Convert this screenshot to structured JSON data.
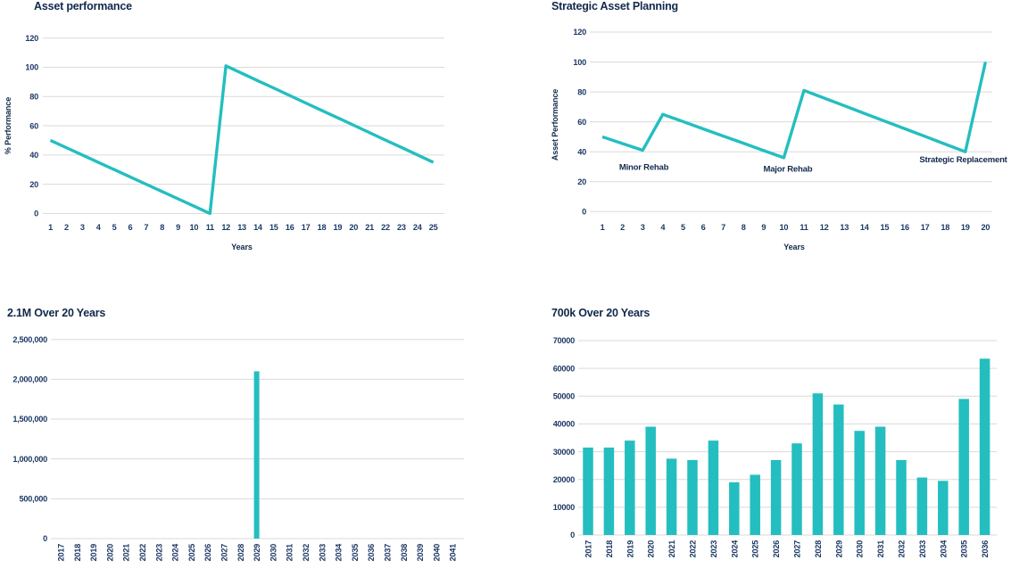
{
  "page": {
    "background": "#ffffff"
  },
  "colors": {
    "teal": "#24bec0",
    "title_navy": "#12294c",
    "tick_navy": "#1e3a66",
    "grid": "#dadada"
  },
  "chart_data": [
    {
      "id": "asset-performance",
      "type": "line",
      "title": "Asset performance",
      "xlabel": "Years",
      "ylabel": "% Performance",
      "x": [
        1,
        2,
        3,
        4,
        5,
        6,
        7,
        8,
        9,
        10,
        11,
        12,
        13,
        14,
        15,
        16,
        17,
        18,
        19,
        20,
        21,
        22,
        23,
        24,
        25
      ],
      "values": [
        50,
        45,
        40,
        35,
        30,
        25,
        20,
        15,
        10,
        5,
        0,
        101,
        95.9,
        90.8,
        85.8,
        80.7,
        75.6,
        70.5,
        65.5,
        60.4,
        55.3,
        50.2,
        45.2,
        40.1,
        35
      ],
      "ylim": [
        0,
        120
      ],
      "ytick_values": [
        0,
        20,
        40,
        60,
        80,
        100,
        120
      ],
      "ytick_labels": [
        "0",
        "20",
        "40",
        "60",
        "80",
        "100",
        "120"
      ],
      "grid": true,
      "legend": false
    },
    {
      "id": "strategic-asset-planning",
      "type": "line",
      "title": "Strategic Asset Planning",
      "xlabel": "Years",
      "ylabel": "Asset Performance",
      "x": [
        1,
        2,
        3,
        4,
        5,
        6,
        7,
        8,
        9,
        10,
        11,
        12,
        13,
        14,
        15,
        16,
        17,
        18,
        19,
        20
      ],
      "values": [
        50,
        45.5,
        41,
        65,
        60.2,
        55.3,
        50.5,
        45.7,
        40.8,
        36,
        81,
        75.9,
        70.8,
        65.6,
        60.5,
        55.4,
        50.3,
        45.1,
        40,
        100
      ],
      "ylim": [
        0,
        120
      ],
      "ytick_values": [
        0,
        20,
        40,
        60,
        80,
        100,
        120
      ],
      "ytick_labels": [
        "0",
        "20",
        "40",
        "60",
        "80",
        "100",
        "120"
      ],
      "grid": true,
      "legend": false,
      "annotations": [
        {
          "label": "Minor Rehab",
          "x": 3.06,
          "y": 31.6
        },
        {
          "label": "Major Rehab",
          "x": 10.2,
          "y": 30.6
        },
        {
          "label": "Strategic Replacement",
          "x": 18.9,
          "y": 36.8
        }
      ]
    },
    {
      "id": "2-1m-over-20-years",
      "type": "bar",
      "title": "2.1M Over 20 Years",
      "categories": [
        "2017",
        "2018",
        "2019",
        "2020",
        "2021",
        "2022",
        "2023",
        "2024",
        "2025",
        "2026",
        "2027",
        "2028",
        "2029",
        "2030",
        "2031",
        "2032",
        "2033",
        "2034",
        "2035",
        "2036",
        "2037",
        "2038",
        "2039",
        "2040",
        "2041"
      ],
      "values": [
        0,
        0,
        0,
        0,
        0,
        0,
        0,
        0,
        0,
        0,
        0,
        0,
        2100000,
        0,
        0,
        0,
        0,
        0,
        0,
        0,
        0,
        0,
        0,
        0,
        0
      ],
      "ylim": [
        0,
        2500000
      ],
      "ytick_values": [
        0,
        500000,
        1000000,
        1500000,
        2000000,
        2500000
      ],
      "ytick_labels": [
        "0",
        "500,000",
        "1,000,000",
        "1,500,000",
        "2,000,000",
        "2,500,000"
      ],
      "grid": true,
      "legend": false
    },
    {
      "id": "700k-over-20-years",
      "type": "bar",
      "title": "700k Over 20 Years",
      "categories": [
        "2017",
        "2018",
        "2019",
        "2020",
        "2021",
        "2022",
        "2023",
        "2024",
        "2025",
        "2026",
        "2027",
        "2028",
        "2029",
        "2030",
        "2031",
        "2032",
        "2033",
        "2034",
        "2035",
        "2036"
      ],
      "values": [
        31500,
        31500,
        34000,
        39000,
        27500,
        27000,
        34000,
        19000,
        21700,
        27000,
        33000,
        51000,
        47000,
        37500,
        39000,
        27000,
        20700,
        19500,
        49000,
        63500
      ],
      "ylim": [
        0,
        70000
      ],
      "ytick_values": [
        0,
        10000,
        20000,
        30000,
        40000,
        50000,
        60000,
        70000
      ],
      "ytick_labels": [
        "0",
        "10000",
        "20000",
        "30000",
        "40000",
        "50000",
        "60000",
        "70000"
      ],
      "grid": true,
      "legend": false
    }
  ]
}
